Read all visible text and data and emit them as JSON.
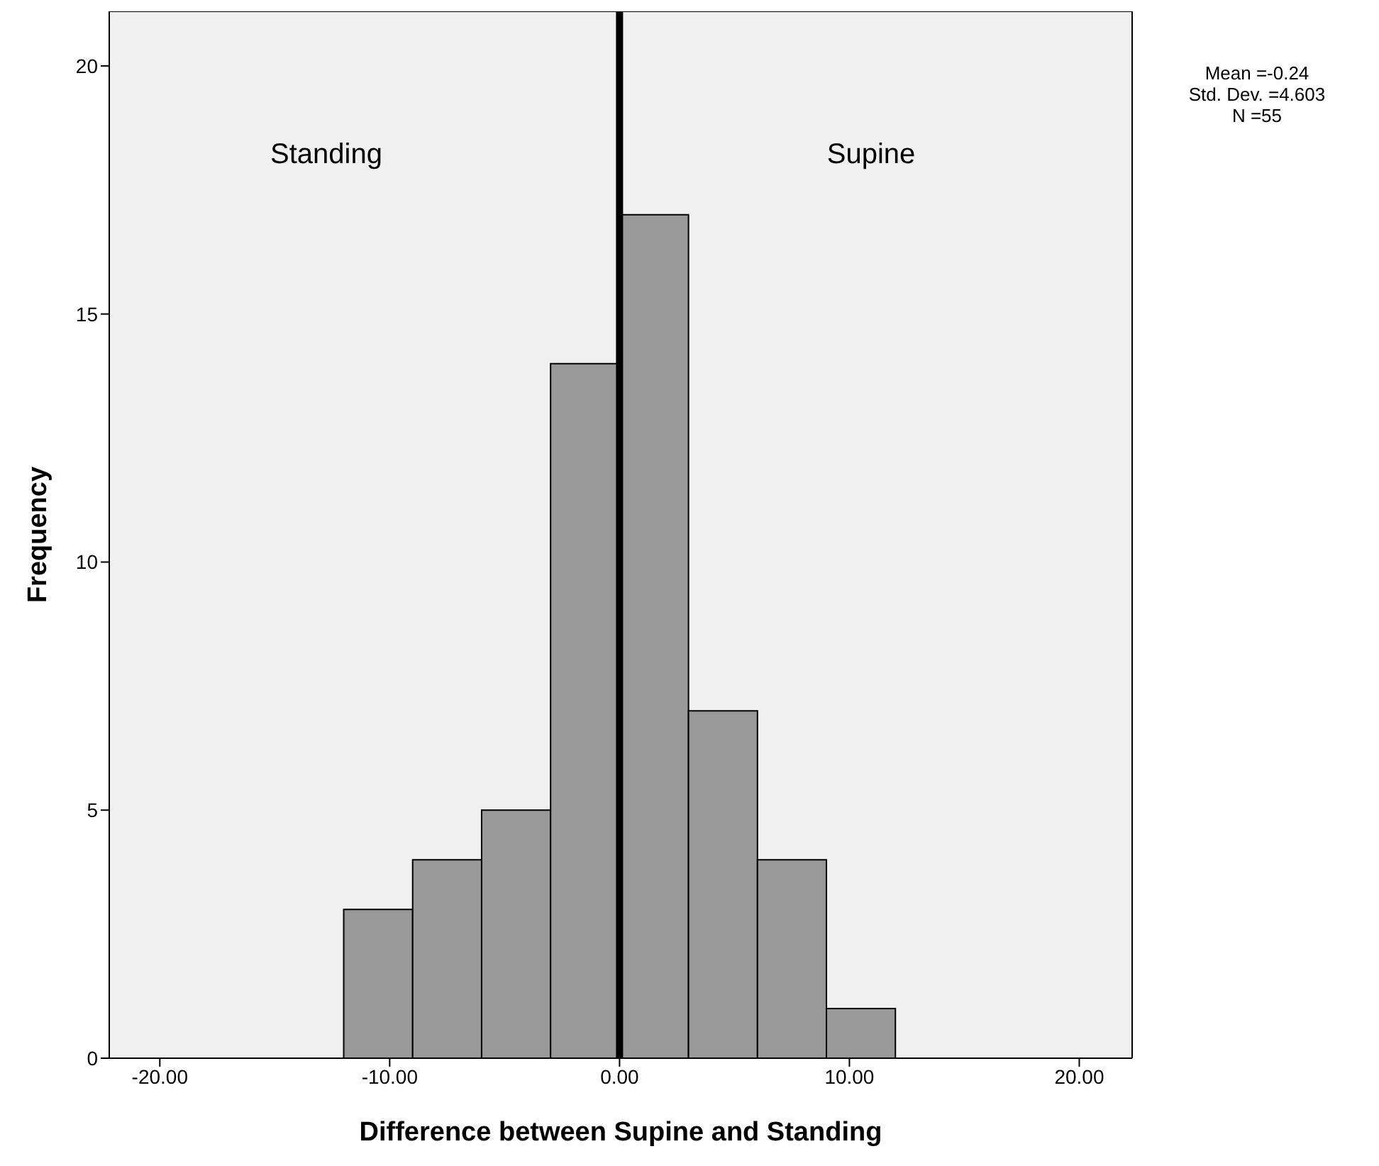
{
  "chart_data": {
    "type": "histogram",
    "xlabel": "Difference between Supine and Standing",
    "ylabel": "Frequency",
    "bins": [
      -12,
      -9,
      -6,
      -3,
      0,
      3,
      6,
      9,
      12
    ],
    "values": [
      3,
      4,
      5,
      14,
      17,
      7,
      4,
      1
    ],
    "color": "#999999",
    "xlim": [
      -22.2,
      22.3
    ],
    "ylim": [
      0,
      21.1
    ],
    "xticks": [
      {
        "value": -20,
        "label": "-20.00"
      },
      {
        "value": -10,
        "label": "-10.00"
      },
      {
        "value": 0,
        "label": "0.00"
      },
      {
        "value": 10,
        "label": "10.00"
      },
      {
        "value": 20,
        "label": "20.00"
      }
    ],
    "yticks": [
      0,
      5,
      10,
      15,
      20
    ],
    "grid": false,
    "ref_lines": [
      {
        "axis": "x",
        "value": 0,
        "color": "#000000"
      }
    ],
    "annotations": [
      "Standing",
      "Supine",
      "Mean =-0.24",
      "Std. Dev. =4.603",
      "N =55"
    ]
  }
}
